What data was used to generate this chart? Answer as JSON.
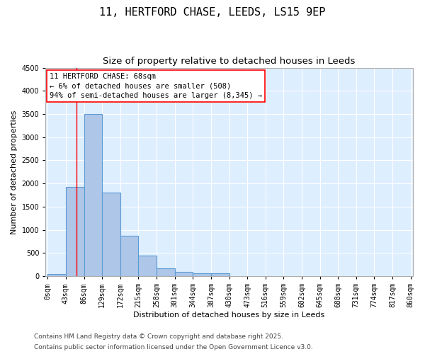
{
  "title_line1": "11, HERTFORD CHASE, LEEDS, LS15 9EP",
  "title_line2": "Size of property relative to detached houses in Leeds",
  "xlabel": "Distribution of detached houses by size in Leeds",
  "ylabel": "Number of detached properties",
  "bin_labels": [
    "0sqm",
    "43sqm",
    "86sqm",
    "129sqm",
    "172sqm",
    "215sqm",
    "258sqm",
    "301sqm",
    "344sqm",
    "387sqm",
    "430sqm",
    "473sqm",
    "516sqm",
    "559sqm",
    "602sqm",
    "645sqm",
    "688sqm",
    "731sqm",
    "774sqm",
    "817sqm",
    "860sqm"
  ],
  "bin_edges": [
    0,
    43,
    86,
    129,
    172,
    215,
    258,
    301,
    344,
    387,
    430,
    473,
    516,
    559,
    602,
    645,
    688,
    731,
    774,
    817,
    860
  ],
  "bar_heights": [
    50,
    1930,
    3500,
    1800,
    870,
    450,
    175,
    100,
    65,
    60,
    0,
    0,
    0,
    0,
    0,
    0,
    0,
    0,
    0,
    0
  ],
  "bar_color": "#aec6e8",
  "bar_edge_color": "#5b9bd5",
  "property_line_x": 68,
  "annotation_text": "11 HERTFORD CHASE: 68sqm\n← 6% of detached houses are smaller (508)\n94% of semi-detached houses are larger (8,345) →",
  "annotation_box_color": "white",
  "annotation_box_edge_color": "red",
  "property_line_color": "red",
  "ylim": [
    0,
    4500
  ],
  "yticks": [
    0,
    500,
    1000,
    1500,
    2000,
    2500,
    3000,
    3500,
    4000,
    4500
  ],
  "bg_color": "#ddeeff",
  "grid_color": "white",
  "footer_line1": "Contains HM Land Registry data © Crown copyright and database right 2025.",
  "footer_line2": "Contains public sector information licensed under the Open Government Licence v3.0.",
  "title_fontsize": 11,
  "subtitle_fontsize": 9.5,
  "axis_label_fontsize": 8,
  "tick_fontsize": 7,
  "annotation_fontsize": 7.5,
  "footer_fontsize": 6.5
}
